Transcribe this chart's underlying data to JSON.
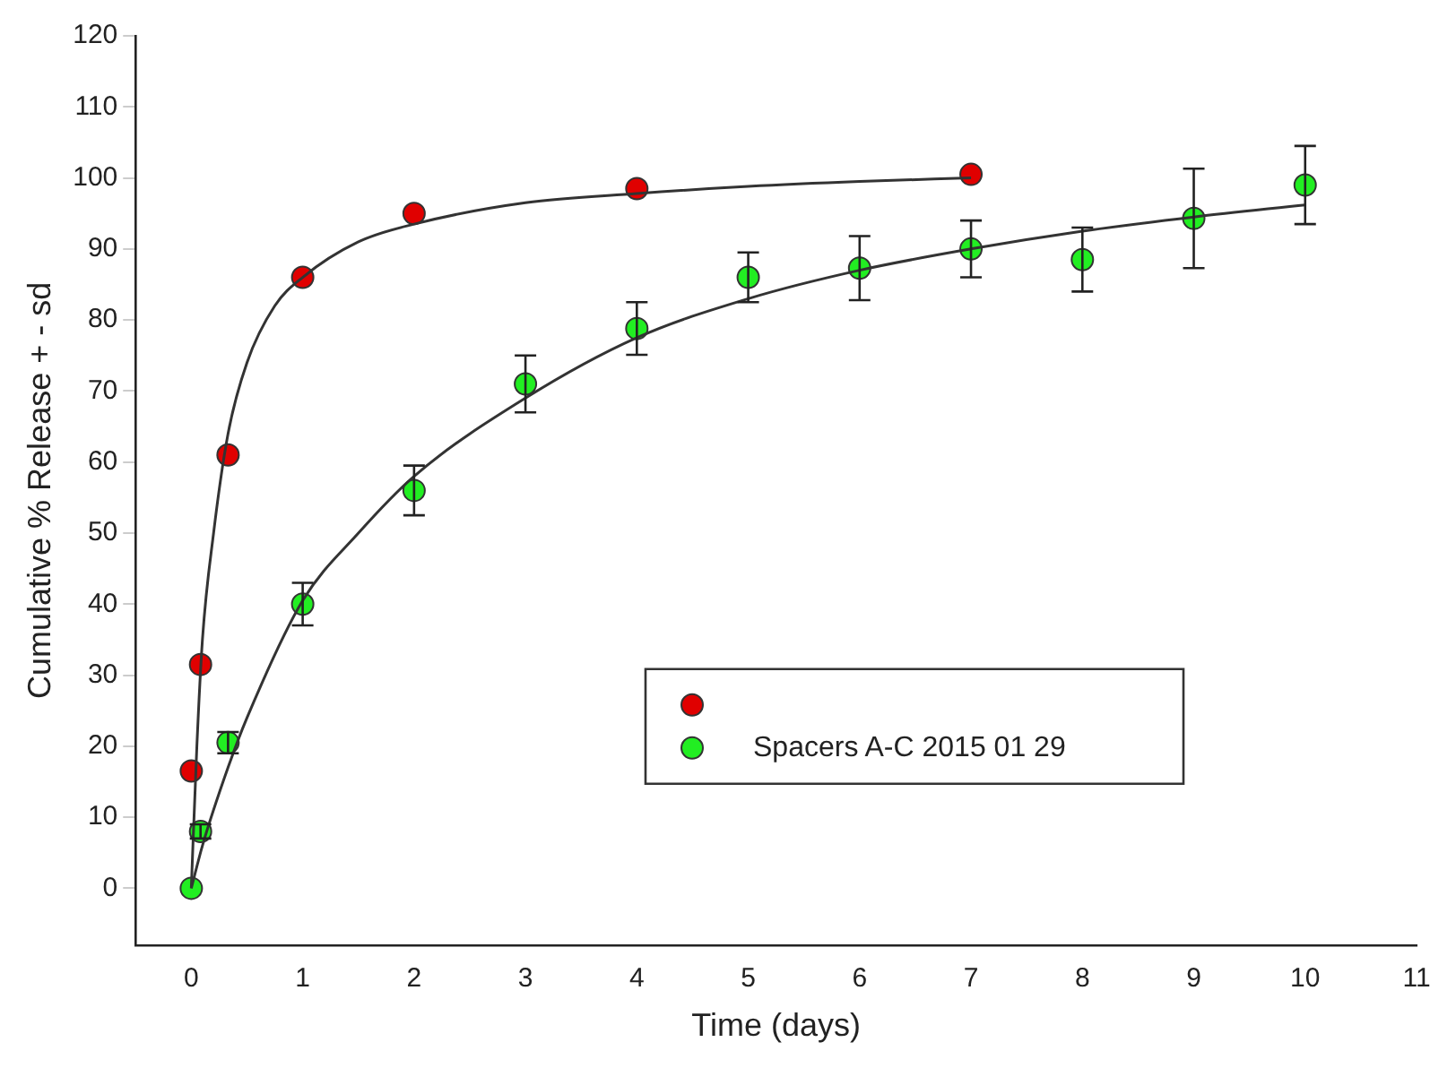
{
  "chart_data": {
    "type": "scatter",
    "xlabel": "Time (days)",
    "ylabel": "Cumulative % Release + - sd",
    "xlim": [
      -0.5,
      11
    ],
    "xticks": [
      0,
      1,
      2,
      3,
      4,
      5,
      6,
      7,
      8,
      9,
      10,
      11
    ],
    "ylim": [
      -8,
      120
    ],
    "yticks": [
      0,
      10,
      20,
      30,
      40,
      50,
      60,
      70,
      80,
      90,
      100,
      110,
      120
    ],
    "grid": false,
    "legend": "bottom right",
    "marker": "circle",
    "series": [
      {
        "type": "line",
        "color": "#333333",
        "marker": "none",
        "x": [
          0,
          0.05,
          0.1,
          0.2,
          0.33,
          0.5,
          0.75,
          1,
          1.5,
          2,
          3,
          4,
          5,
          6,
          7
        ],
        "values": [
          0,
          20,
          35,
          50,
          64,
          74,
          82,
          86,
          91,
          93.5,
          96.5,
          97.8,
          98.8,
          99.5,
          100
        ]
      },
      {
        "type": "line",
        "color": "#333333",
        "marker": "none",
        "x": [
          0,
          0.1,
          0.33,
          0.5,
          1,
          1.5,
          2,
          3,
          4,
          5,
          6,
          7,
          8,
          9,
          10
        ],
        "values": [
          0,
          6,
          17,
          24,
          40.5,
          50,
          58,
          69,
          77.5,
          83,
          87,
          90,
          92.5,
          94.5,
          96.2
        ]
      },
      {
        "color": "#e00000",
        "x": [
          0,
          0.083,
          0.33,
          1,
          2,
          4,
          7
        ],
        "values": [
          16.5,
          31.5,
          61,
          86,
          95,
          98.5,
          100.5
        ]
      },
      {
        "name": "Spacers A-C 2015 01 29",
        "color": "#22ee22",
        "x": [
          0,
          0.083,
          0.33,
          1,
          2,
          3,
          4,
          5,
          6,
          7,
          8,
          9,
          10
        ],
        "values": [
          0,
          8,
          20.5,
          40,
          56,
          71,
          78.8,
          86,
          87.3,
          90,
          88.5,
          94.3,
          99
        ],
        "errors": [
          null,
          1,
          1.5,
          3,
          3.5,
          4,
          3.7,
          3.5,
          4.5,
          4,
          4.5,
          7,
          5.5
        ]
      }
    ]
  }
}
